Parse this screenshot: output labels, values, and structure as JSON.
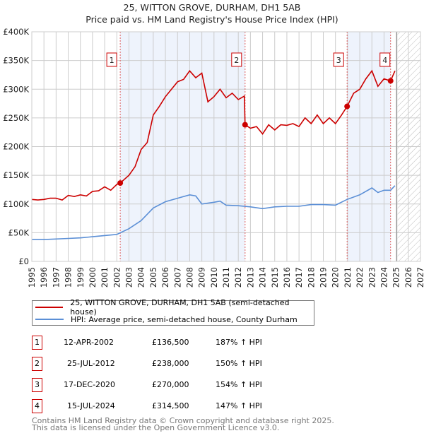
{
  "title": "25, WITTON GROVE, DURHAM, DH1 5AB",
  "subtitle": "Price paid vs. HM Land Registry's House Price Index (HPI)",
  "chart_data": {
    "type": "line",
    "title": "25, WITTON GROVE, DURHAM, DH1 5AB",
    "subtitle": "Price paid vs. HM Land Registry's House Price Index (HPI)",
    "xlim": [
      1995,
      2027
    ],
    "ylim": [
      0,
      400000
    ],
    "x_ticks": [
      "1995",
      "1996",
      "1997",
      "1998",
      "1999",
      "2000",
      "2001",
      "2002",
      "2003",
      "2004",
      "2005",
      "2006",
      "2007",
      "2008",
      "2009",
      "2010",
      "2011",
      "2012",
      "2013",
      "2014",
      "2015",
      "2016",
      "2017",
      "2018",
      "2019",
      "2020",
      "2021",
      "2022",
      "2023",
      "2024",
      "2025",
      "2026",
      "2027"
    ],
    "y_ticks": [
      {
        "v": 0,
        "label": "£0"
      },
      {
        "v": 50000,
        "label": "£50K"
      },
      {
        "v": 100000,
        "label": "£100K"
      },
      {
        "v": 150000,
        "label": "£150K"
      },
      {
        "v": 200000,
        "label": "£200K"
      },
      {
        "v": 250000,
        "label": "£250K"
      },
      {
        "v": 300000,
        "label": "£300K"
      },
      {
        "v": 350000,
        "label": "£350K"
      },
      {
        "v": 400000,
        "label": "£400K"
      }
    ],
    "grid": true,
    "forecast_from": 2025,
    "series": [
      {
        "name": "25, WITTON GROVE, DURHAM, DH1 5AB (semi-detached house)",
        "color": "#cc0000",
        "x": [
          1995,
          1995.5,
          1996,
          1996.5,
          1997,
          1997.5,
          1998,
          1998.5,
          1999,
          1999.5,
          2000,
          2000.5,
          2001,
          2001.5,
          2002,
          2002.28,
          2003,
          2003.5,
          2004,
          2004.5,
          2005,
          2005.5,
          2006,
          2006.5,
          2007,
          2007.5,
          2008,
          2008.5,
          2009,
          2009.5,
          2010,
          2010.5,
          2011,
          2011.5,
          2012,
          2012.5,
          2012.56,
          2013,
          2013.5,
          2014,
          2014.5,
          2015,
          2015.5,
          2016,
          2016.5,
          2017,
          2017.5,
          2018,
          2018.5,
          2019,
          2019.5,
          2020,
          2020.5,
          2020.96,
          2021.5,
          2022,
          2022.5,
          2023,
          2023.5,
          2024,
          2024.54,
          2024.9
        ],
        "y": [
          108000,
          107000,
          108000,
          110000,
          110000,
          107000,
          115000,
          113000,
          116000,
          114000,
          122000,
          123000,
          130000,
          124000,
          134000,
          136500,
          150000,
          165000,
          195000,
          207000,
          255000,
          270000,
          287000,
          300000,
          313000,
          317000,
          332000,
          320000,
          328000,
          278000,
          287000,
          300000,
          285000,
          293000,
          282000,
          288000,
          238000,
          232000,
          235000,
          222000,
          238000,
          229000,
          238000,
          237000,
          240000,
          235000,
          250000,
          240000,
          255000,
          240000,
          250000,
          240000,
          255000,
          270000,
          293000,
          300000,
          318000,
          332000,
          305000,
          318000,
          314500,
          332000
        ]
      },
      {
        "name": "HPI: Average price, semi-detached house, County Durham",
        "color": "#5b8fd6",
        "x": [
          1995,
          1996,
          1997,
          1998,
          1999,
          2000,
          2001,
          2002,
          2003,
          2004,
          2005,
          2006,
          2007,
          2008,
          2008.5,
          2009,
          2010,
          2010.5,
          2011,
          2012,
          2013,
          2014,
          2015,
          2016,
          2017,
          2018,
          2019,
          2020,
          2020.96,
          2022,
          2023,
          2023.5,
          2024,
          2024.54,
          2024.9
        ],
        "y": [
          38000,
          38000,
          39000,
          40000,
          41000,
          43000,
          45000,
          47000,
          57000,
          71000,
          93000,
          104000,
          110000,
          116000,
          114000,
          100000,
          103000,
          105000,
          98000,
          97000,
          95000,
          92000,
          95000,
          96000,
          96000,
          99000,
          99000,
          98000,
          108000,
          116000,
          128000,
          120000,
          124000,
          124000,
          132000
        ]
      }
    ],
    "sales": [
      {
        "n": "1",
        "x": 2002.28,
        "date": "12-APR-2002",
        "price": 136500,
        "price_label": "£136,500",
        "hpi": "187% ↑ HPI"
      },
      {
        "n": "2",
        "x": 2012.56,
        "date": "25-JUL-2012",
        "price": 238000,
        "price_label": "£238,000",
        "hpi": "150% ↑ HPI"
      },
      {
        "n": "3",
        "x": 2020.96,
        "date": "17-DEC-2020",
        "price": 270000,
        "price_label": "£270,000",
        "hpi": "154% ↑ HPI"
      },
      {
        "n": "4",
        "x": 2024.54,
        "date": "15-JUL-2024",
        "price": 314500,
        "price_label": "£314,500",
        "hpi": "147% ↑ HPI"
      }
    ]
  },
  "legend": {
    "red": "25, WITTON GROVE, DURHAM, DH1 5AB (semi-detached house)",
    "blue": "HPI: Average price, semi-detached house, County Durham"
  },
  "footer": {
    "line1": "Contains HM Land Registry data © Crown copyright and database right 2025.",
    "line2": "This data is licensed under the Open Government Licence v3.0."
  }
}
